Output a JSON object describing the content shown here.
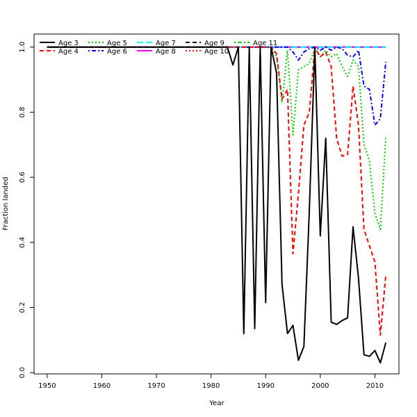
{
  "chart_data": {
    "type": "line",
    "title": "",
    "xlabel": "Year",
    "ylabel": "Fraction landed",
    "xlim": [
      1947.6,
      2014.4
    ],
    "ylim": [
      -0.004,
      1.04
    ],
    "x_ticks": [
      1950,
      1960,
      1970,
      1980,
      1990,
      2000,
      2010
    ],
    "y_ticks": [
      0.0,
      0.2,
      0.4,
      0.6,
      0.8,
      1.0
    ],
    "x_tick_labels": [
      "1950",
      "1960",
      "1970",
      "1980",
      "1990",
      "2000",
      "2010"
    ],
    "y_tick_labels": [
      "0.0",
      "0.2",
      "0.4",
      "0.6",
      "0.8",
      "1.0"
    ],
    "grid": false,
    "legend_position": "top-left",
    "legend_columns": 5,
    "x": [
      1950,
      1951,
      1952,
      1953,
      1954,
      1955,
      1956,
      1957,
      1958,
      1959,
      1960,
      1961,
      1962,
      1963,
      1964,
      1965,
      1966,
      1967,
      1968,
      1969,
      1970,
      1971,
      1972,
      1973,
      1974,
      1975,
      1976,
      1977,
      1978,
      1979,
      1980,
      1981,
      1982,
      1983,
      1984,
      1985,
      1986,
      1987,
      1988,
      1989,
      1990,
      1991,
      1992,
      1993,
      1994,
      1995,
      1996,
      1997,
      1998,
      1999,
      2000,
      2001,
      2002,
      2003,
      2004,
      2005,
      2006,
      2007,
      2008,
      2009,
      2010,
      2011,
      2012
    ],
    "series": [
      {
        "name": "Age 3",
        "color": "#000000",
        "dash": "solid",
        "values": [
          1,
          1,
          1,
          1,
          1,
          1,
          1,
          1,
          1,
          1,
          1,
          1,
          1,
          1,
          1,
          1,
          1,
          1,
          1,
          1,
          1,
          1,
          1,
          1,
          1,
          1,
          1,
          1,
          1,
          1,
          1,
          1,
          1,
          1,
          0.945,
          1.0,
          0.12,
          1.0,
          0.135,
          1.0,
          0.215,
          1.0,
          0.92,
          0.27,
          0.12,
          0.145,
          0.038,
          0.08,
          0.5,
          1.0,
          0.42,
          0.72,
          0.155,
          0.148,
          0.16,
          0.168,
          0.448,
          0.29,
          0.055,
          0.05,
          0.068,
          0.03,
          0.092
        ]
      },
      {
        "name": "Age 4",
        "color": "#ff0000",
        "dash": "dashed",
        "values": [
          1,
          1,
          1,
          1,
          1,
          1,
          1,
          1,
          1,
          1,
          1,
          1,
          1,
          1,
          1,
          1,
          1,
          1,
          1,
          1,
          1,
          1,
          1,
          1,
          1,
          1,
          1,
          1,
          1,
          1,
          1,
          1,
          1,
          1,
          1,
          1,
          1,
          1,
          1,
          1,
          1,
          1,
          0.98,
          0.84,
          0.87,
          0.365,
          0.55,
          0.76,
          0.8,
          1.0,
          0.97,
          0.985,
          0.94,
          0.72,
          0.665,
          0.67,
          0.88,
          0.76,
          0.44,
          0.39,
          0.34,
          0.115,
          0.3
        ]
      },
      {
        "name": "Age 5",
        "color": "#00cd00",
        "dash": "dotted",
        "values": [
          1,
          1,
          1,
          1,
          1,
          1,
          1,
          1,
          1,
          1,
          1,
          1,
          1,
          1,
          1,
          1,
          1,
          1,
          1,
          1,
          1,
          1,
          1,
          1,
          1,
          1,
          1,
          1,
          1,
          1,
          1,
          1,
          1,
          1,
          1,
          1,
          1,
          1,
          1,
          1,
          1,
          1,
          0.97,
          0.83,
          0.99,
          0.73,
          0.93,
          0.94,
          0.95,
          0.995,
          0.97,
          0.99,
          0.97,
          0.98,
          0.94,
          0.91,
          0.96,
          0.94,
          0.7,
          0.65,
          0.49,
          0.44,
          0.725
        ]
      },
      {
        "name": "Age 6",
        "color": "#0000ff",
        "dash": "dotdash",
        "values": [
          1,
          1,
          1,
          1,
          1,
          1,
          1,
          1,
          1,
          1,
          1,
          1,
          1,
          1,
          1,
          1,
          1,
          1,
          1,
          1,
          1,
          1,
          1,
          1,
          1,
          1,
          1,
          1,
          1,
          1,
          1,
          1,
          1,
          1,
          1,
          1,
          1,
          1,
          1,
          1,
          1,
          1,
          1,
          1,
          1,
          0.985,
          0.96,
          0.985,
          0.995,
          1.0,
          0.99,
          1.0,
          0.99,
          1.0,
          0.995,
          0.975,
          0.97,
          0.99,
          0.88,
          0.87,
          0.76,
          0.78,
          0.955
        ]
      },
      {
        "name": "Age 7",
        "color": "#00ffff",
        "dash": "longdash",
        "values": [
          1,
          1,
          1,
          1,
          1,
          1,
          1,
          1,
          1,
          1,
          1,
          1,
          1,
          1,
          1,
          1,
          1,
          1,
          1,
          1,
          1,
          1,
          1,
          1,
          1,
          1,
          1,
          1,
          1,
          1,
          1,
          1,
          1,
          1,
          1,
          1,
          1,
          1,
          1,
          1,
          1,
          1,
          1,
          1,
          1,
          1,
          1,
          1,
          1,
          1,
          1,
          1,
          1,
          1,
          1,
          1,
          1,
          1,
          1,
          1,
          1,
          1,
          1
        ]
      },
      {
        "name": "Age 8",
        "color": "#ff00ff",
        "dash": "solid",
        "values": [
          1,
          1,
          1,
          1,
          1,
          1,
          1,
          1,
          1,
          1,
          1,
          1,
          1,
          1,
          1,
          1,
          1,
          1,
          1,
          1,
          1,
          1,
          1,
          1,
          1,
          1,
          1,
          1,
          1,
          1,
          1,
          1,
          1,
          1,
          1,
          1,
          1,
          1,
          1,
          1,
          1,
          1,
          1,
          1,
          1,
          1,
          1,
          1,
          1,
          1,
          1,
          1,
          1,
          1,
          1,
          1,
          1,
          1,
          1,
          1,
          1,
          1,
          1
        ]
      },
      {
        "name": "Age 9",
        "color": "#000000",
        "dash": "dashed",
        "values": [
          1,
          1,
          1,
          1,
          1,
          1,
          1,
          1,
          1,
          1,
          1,
          1,
          1,
          1,
          1,
          1,
          1,
          1,
          1,
          1,
          1,
          1,
          1,
          1,
          1,
          1,
          1,
          1,
          1,
          1,
          1,
          1,
          1,
          1,
          1,
          1,
          1,
          1,
          1,
          1,
          1,
          1,
          1,
          1,
          1,
          1,
          1,
          1,
          1,
          1,
          1,
          1,
          1,
          1,
          1,
          1,
          1,
          1,
          1,
          1,
          1,
          1,
          1
        ]
      },
      {
        "name": "Age 10",
        "color": "#ff0000",
        "dash": "dotted",
        "values": [
          1,
          1,
          1,
          1,
          1,
          1,
          1,
          1,
          1,
          1,
          1,
          1,
          1,
          1,
          1,
          1,
          1,
          1,
          1,
          1,
          1,
          1,
          1,
          1,
          1,
          1,
          1,
          1,
          1,
          1,
          1,
          1,
          1,
          1,
          1,
          1,
          1,
          1,
          1,
          1,
          1,
          1,
          1,
          1,
          1,
          1,
          1,
          1,
          1,
          1,
          1,
          1,
          1,
          1,
          1,
          1,
          1,
          1,
          1,
          1,
          1,
          1,
          1
        ]
      },
      {
        "name": "Age 11",
        "color": "#00cd00",
        "dash": "dotdash",
        "values": [
          1,
          1,
          1,
          1,
          1,
          1,
          1,
          1,
          1,
          1,
          1,
          1,
          1,
          1,
          1,
          1,
          1,
          1,
          1,
          1,
          1,
          1,
          1,
          1,
          1,
          1,
          1,
          1,
          1,
          1,
          1,
          1,
          1,
          1,
          1,
          1,
          1,
          1,
          1,
          1,
          1,
          1,
          1,
          1,
          1,
          1,
          1,
          1,
          1,
          1,
          1,
          1,
          1,
          1,
          1,
          1,
          1,
          1,
          1,
          1,
          1,
          1,
          1
        ]
      }
    ]
  }
}
